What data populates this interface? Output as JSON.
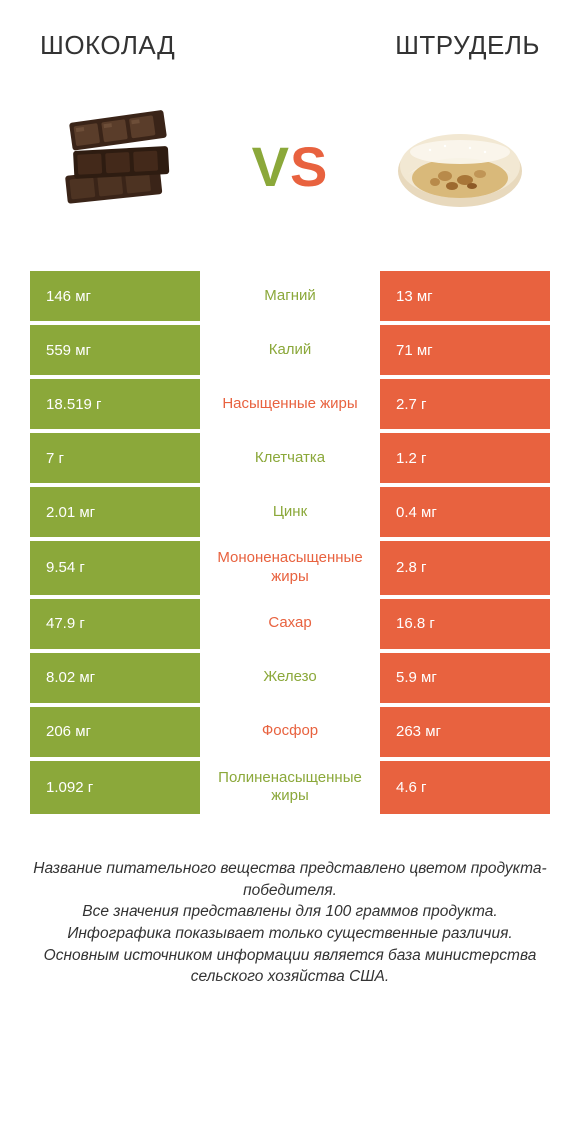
{
  "colors": {
    "green": "#8ba83a",
    "orange": "#e8623f",
    "text_dark": "#333333",
    "white": "#ffffff"
  },
  "header": {
    "left_title": "ШОКОЛАД",
    "right_title": "ШТРУДЕЛЬ",
    "vs_v": "V",
    "vs_s": "S"
  },
  "rows": [
    {
      "left": "146 мг",
      "center": "Магний",
      "right": "13 мг",
      "winner": "left"
    },
    {
      "left": "559 мг",
      "center": "Калий",
      "right": "71 мг",
      "winner": "left"
    },
    {
      "left": "18.519 г",
      "center": "Насыщенные жиры",
      "right": "2.7 г",
      "winner": "right"
    },
    {
      "left": "7 г",
      "center": "Клетчатка",
      "right": "1.2 г",
      "winner": "left"
    },
    {
      "left": "2.01 мг",
      "center": "Цинк",
      "right": "0.4 мг",
      "winner": "left"
    },
    {
      "left": "9.54 г",
      "center": "Мононенасыщенные жиры",
      "right": "2.8 г",
      "winner": "right"
    },
    {
      "left": "47.9 г",
      "center": "Сахар",
      "right": "16.8 г",
      "winner": "right"
    },
    {
      "left": "8.02 мг",
      "center": "Железо",
      "right": "5.9 мг",
      "winner": "left"
    },
    {
      "left": "206 мг",
      "center": "Фосфор",
      "right": "263 мг",
      "winner": "right"
    },
    {
      "left": "1.092 г",
      "center": "Полиненасыщенные жиры",
      "right": "4.6 г",
      "winner": "left"
    }
  ],
  "footer": {
    "line1": "Название питательного вещества представлено цветом продукта-победителя.",
    "line2": "Все значения представлены для 100 граммов продукта.",
    "line3": "Инфографика показывает только существенные различия.",
    "line4": "Основным источником информации является база министерства сельского хозяйства США."
  }
}
